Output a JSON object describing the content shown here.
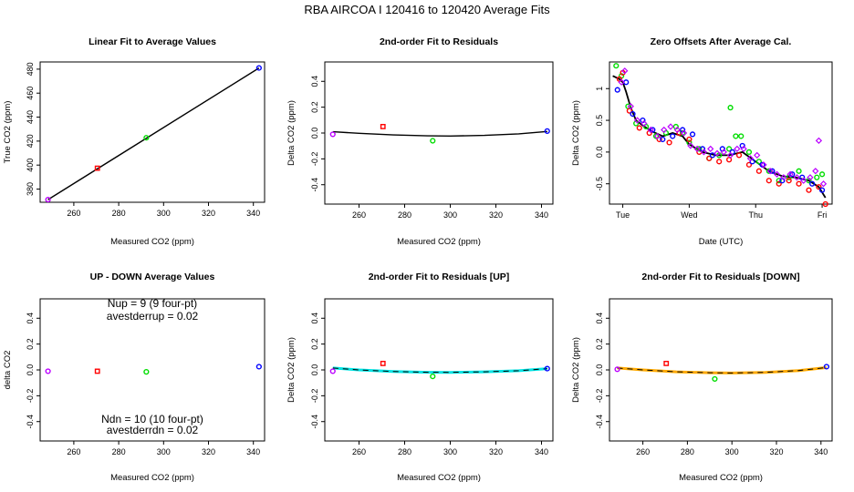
{
  "page_title": "RBA   AIRCOA I   120416 to 120420   Average Fits",
  "colors": {
    "red": "#ff0000",
    "green": "#00dd00",
    "blue": "#0000ff",
    "purple": "#bb00ff",
    "cyan": "#00e5e5",
    "orange": "#ffaa00",
    "black": "#000000"
  },
  "chart_data": [
    {
      "id": "p1",
      "type": "scatter",
      "title": "Linear Fit to Average Values",
      "xlabel": "Measured CO2 (ppm)",
      "ylabel": "True CO2 (ppm)",
      "xlim": [
        245,
        345
      ],
      "ylim": [
        369,
        486
      ],
      "xticks": [
        260,
        280,
        300,
        320,
        340
      ],
      "yticks": [
        380,
        400,
        420,
        440,
        460,
        480
      ],
      "points": [
        {
          "x": 248.5,
          "y": 371.2,
          "color": "purple",
          "marker": "circle"
        },
        {
          "x": 270.5,
          "y": 397.4,
          "color": "red",
          "marker": "square"
        },
        {
          "x": 292.3,
          "y": 422.8,
          "color": "green",
          "marker": "circle"
        },
        {
          "x": 342.5,
          "y": 481.0,
          "color": "blue",
          "marker": "circle"
        }
      ],
      "fit": {
        "kind": "linear",
        "x": [
          248.5,
          342.5
        ],
        "y": [
          371.2,
          481.0
        ],
        "color": "black"
      }
    },
    {
      "id": "p2",
      "type": "scatter",
      "title": "2nd-order Fit to Residuals",
      "xlabel": "Measured CO2 (ppm)",
      "ylabel": "Delta CO2 (ppm)",
      "xlim": [
        245,
        345
      ],
      "ylim": [
        -0.55,
        0.55
      ],
      "xticks": [
        260,
        280,
        300,
        320,
        340
      ],
      "yticks": [
        -0.4,
        -0.2,
        0.0,
        0.2,
        0.4
      ],
      "points": [
        {
          "x": 248.5,
          "y": -0.01,
          "color": "purple",
          "marker": "circle"
        },
        {
          "x": 270.5,
          "y": 0.05,
          "color": "red",
          "marker": "square"
        },
        {
          "x": 292.3,
          "y": -0.06,
          "color": "green",
          "marker": "circle"
        },
        {
          "x": 342.5,
          "y": 0.015,
          "color": "blue",
          "marker": "circle"
        }
      ],
      "fit": {
        "kind": "curve",
        "x": [
          248.5,
          260,
          275,
          290,
          300,
          315,
          330,
          342.5
        ],
        "y": [
          0.01,
          -0.002,
          -0.015,
          -0.022,
          -0.023,
          -0.018,
          -0.006,
          0.012
        ],
        "color": "black"
      }
    },
    {
      "id": "p3",
      "type": "scatter",
      "title": "Zero Offsets After Average Cal.",
      "xlabel": "Date (UTC)",
      "ylabel": "Delta CO2 (ppm)",
      "xlim": [
        -0.2,
        3.15
      ],
      "ylim": [
        -0.82,
        1.42
      ],
      "xticks": [
        0,
        1,
        2,
        3
      ],
      "xticklabels": [
        "Tue",
        "Wed",
        "Thu",
        "Fri"
      ],
      "yticks": [
        -0.5,
        0.0,
        0.5,
        1.0
      ],
      "series": [
        {
          "name": "green",
          "color": "green",
          "marker": "circle",
          "x": [
            -0.1,
            -0.02,
            0.08,
            0.2,
            0.35,
            0.5,
            0.65,
            0.8,
            0.9,
            1.0,
            1.15,
            1.3,
            1.45,
            1.6,
            1.62,
            1.7,
            1.78,
            1.9,
            2.05,
            2.2,
            2.35,
            2.5,
            2.65,
            2.8,
            2.92,
            3.0
          ],
          "y": [
            1.36,
            1.2,
            0.72,
            0.45,
            0.4,
            0.25,
            0.3,
            0.4,
            0.3,
            0.15,
            0.05,
            -0.1,
            -0.05,
            0.05,
            0.7,
            0.25,
            0.25,
            0.0,
            -0.15,
            -0.3,
            -0.45,
            -0.4,
            -0.3,
            -0.45,
            -0.4,
            -0.35
          ]
        },
        {
          "name": "red",
          "color": "red",
          "marker": "circle",
          "x": [
            -0.05,
            0.0,
            0.1,
            0.25,
            0.4,
            0.55,
            0.7,
            0.85,
            1.0,
            1.15,
            1.3,
            1.45,
            1.6,
            1.75,
            1.9,
            2.05,
            2.2,
            2.35,
            2.5,
            2.65,
            2.8,
            2.95,
            3.05
          ],
          "y": [
            1.15,
            1.25,
            0.65,
            0.38,
            0.3,
            0.2,
            0.15,
            0.3,
            0.2,
            0.0,
            -0.1,
            -0.15,
            -0.12,
            -0.05,
            -0.2,
            -0.3,
            -0.45,
            -0.5,
            -0.45,
            -0.5,
            -0.6,
            -0.55,
            -0.82
          ]
        },
        {
          "name": "blue",
          "color": "blue",
          "marker": "circle",
          "x": [
            -0.08,
            0.05,
            0.15,
            0.3,
            0.45,
            0.6,
            0.75,
            0.9,
            1.05,
            1.2,
            1.35,
            1.5,
            1.65,
            1.8,
            1.95,
            2.1,
            2.25,
            2.4,
            2.55,
            2.7,
            2.85,
            3.0
          ],
          "y": [
            0.98,
            1.1,
            0.6,
            0.5,
            0.35,
            0.2,
            0.25,
            0.35,
            0.28,
            0.05,
            -0.05,
            0.05,
            0.0,
            0.1,
            -0.15,
            -0.2,
            -0.3,
            -0.45,
            -0.35,
            -0.4,
            -0.5,
            -0.6
          ]
        },
        {
          "name": "purple",
          "color": "purple",
          "marker": "diamond",
          "x": [
            -0.02,
            0.03,
            0.12,
            0.22,
            0.32,
            0.42,
            0.52,
            0.62,
            0.72,
            0.82,
            0.92,
            1.02,
            1.12,
            1.22,
            1.32,
            1.42,
            1.52,
            1.62,
            1.72,
            1.82,
            1.92,
            2.02,
            2.12,
            2.22,
            2.32,
            2.42,
            2.52,
            2.62,
            2.72,
            2.82,
            2.9,
            2.95,
            3.02
          ],
          "y": [
            1.1,
            1.28,
            0.72,
            0.5,
            0.45,
            0.35,
            0.25,
            0.35,
            0.4,
            0.35,
            0.3,
            0.1,
            0.05,
            0.0,
            0.05,
            -0.02,
            0.0,
            -0.05,
            0.05,
            0.05,
            -0.1,
            -0.05,
            -0.2,
            -0.3,
            -0.35,
            -0.4,
            -0.35,
            -0.4,
            -0.45,
            -0.4,
            -0.3,
            0.18,
            -0.5
          ]
        }
      ],
      "fit": {
        "kind": "curve",
        "x": [
          -0.15,
          -0.05,
          0.0,
          0.05,
          0.12,
          0.2,
          0.3,
          0.45,
          0.6,
          0.75,
          0.9,
          1.0,
          1.2,
          1.4,
          1.6,
          1.8,
          2.0,
          2.2,
          2.4,
          2.6,
          2.8,
          2.95,
          3.05
        ],
        "y": [
          1.2,
          1.15,
          1.1,
          0.95,
          0.7,
          0.5,
          0.42,
          0.32,
          0.25,
          0.3,
          0.25,
          0.12,
          0.0,
          -0.05,
          -0.05,
          0.0,
          -0.15,
          -0.3,
          -0.38,
          -0.4,
          -0.45,
          -0.55,
          -0.72
        ],
        "color": "black"
      }
    },
    {
      "id": "p4",
      "type": "scatter",
      "title": "UP - DOWN Average Values",
      "xlabel": "Measured CO2 (ppm)",
      "ylabel": "delta CO2",
      "xlim": [
        245,
        345
      ],
      "ylim": [
        -0.55,
        0.55
      ],
      "xticks": [
        260,
        280,
        300,
        320,
        340
      ],
      "yticks": [
        -0.4,
        -0.2,
        0.0,
        0.2,
        0.4
      ],
      "annotations": [
        "Nup = 9 (9 four-pt)",
        "avestderrup =  0.02",
        "Ndn = 10 (10 four-pt)",
        "avestderrdn =  0.02"
      ],
      "points": [
        {
          "x": 248.5,
          "y": -0.01,
          "color": "purple",
          "marker": "circle"
        },
        {
          "x": 270.5,
          "y": -0.01,
          "color": "red",
          "marker": "square"
        },
        {
          "x": 292.3,
          "y": -0.015,
          "color": "green",
          "marker": "circle"
        },
        {
          "x": 342.5,
          "y": 0.025,
          "color": "blue",
          "marker": "circle"
        }
      ]
    },
    {
      "id": "p5",
      "type": "scatter",
      "title": "2nd-order Fit to Residuals [UP]",
      "xlabel": "Measured CO2 (ppm)",
      "ylabel": "Delta CO2 (ppm)",
      "xlim": [
        245,
        345
      ],
      "ylim": [
        -0.55,
        0.55
      ],
      "xticks": [
        260,
        280,
        300,
        320,
        340
      ],
      "yticks": [
        -0.4,
        -0.2,
        0.0,
        0.2,
        0.4
      ],
      "points": [
        {
          "x": 248.5,
          "y": -0.01,
          "color": "purple",
          "marker": "circle"
        },
        {
          "x": 270.5,
          "y": 0.05,
          "color": "red",
          "marker": "square"
        },
        {
          "x": 292.3,
          "y": -0.05,
          "color": "green",
          "marker": "circle"
        },
        {
          "x": 342.5,
          "y": 0.01,
          "color": "blue",
          "marker": "circle"
        }
      ],
      "fit": {
        "kind": "curve",
        "x": [
          248.5,
          260,
          275,
          290,
          300,
          315,
          330,
          342.5
        ],
        "y": [
          0.015,
          0.0,
          -0.012,
          -0.018,
          -0.019,
          -0.015,
          -0.006,
          0.01
        ],
        "color": "black",
        "overlay_color": "cyan"
      }
    },
    {
      "id": "p6",
      "type": "scatter",
      "title": "2nd-order Fit to Residuals [DOWN]",
      "xlabel": "Measured CO2 (ppm)",
      "ylabel": "Delta CO2 (ppm)",
      "xlim": [
        245,
        345
      ],
      "ylim": [
        -0.55,
        0.55
      ],
      "xticks": [
        260,
        280,
        300,
        320,
        340
      ],
      "yticks": [
        -0.4,
        -0.2,
        0.0,
        0.2,
        0.4
      ],
      "points": [
        {
          "x": 248.5,
          "y": 0.005,
          "color": "purple",
          "marker": "circle"
        },
        {
          "x": 270.5,
          "y": 0.05,
          "color": "red",
          "marker": "square"
        },
        {
          "x": 292.3,
          "y": -0.07,
          "color": "green",
          "marker": "circle"
        },
        {
          "x": 342.5,
          "y": 0.025,
          "color": "blue",
          "marker": "circle"
        }
      ],
      "fit": {
        "kind": "curve",
        "x": [
          248.5,
          260,
          275,
          290,
          300,
          315,
          330,
          342.5
        ],
        "y": [
          0.015,
          0.0,
          -0.015,
          -0.022,
          -0.024,
          -0.019,
          -0.005,
          0.018
        ],
        "color": "black",
        "overlay_color": "orange"
      }
    }
  ]
}
